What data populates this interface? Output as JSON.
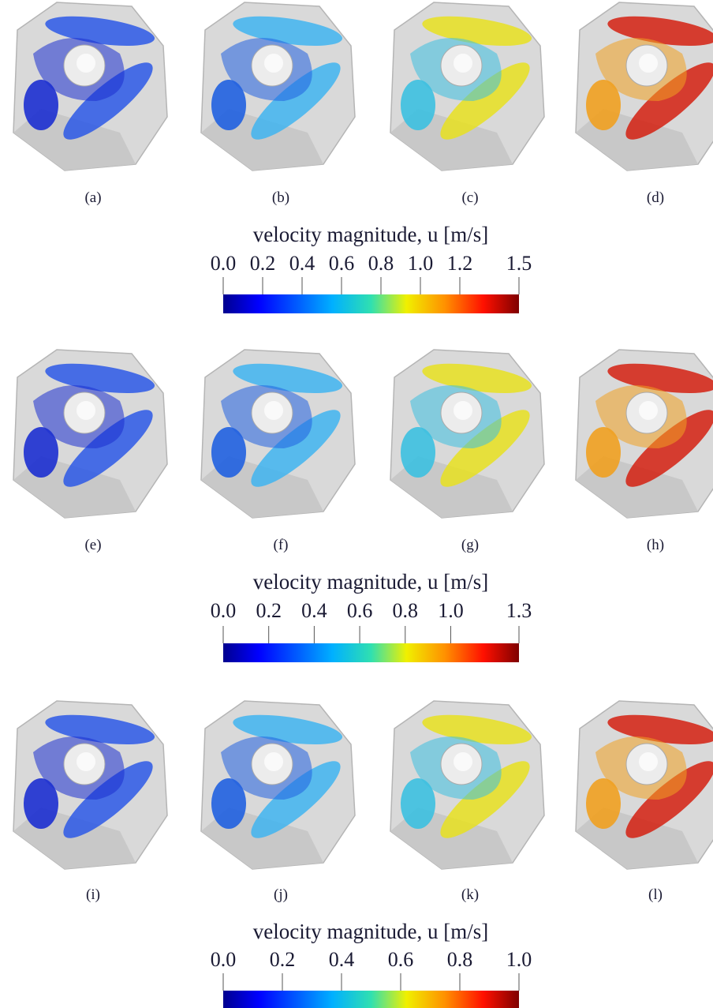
{
  "figure": {
    "rows": [
      {
        "panels": [
          "(a)",
          "(b)",
          "(c)",
          "(d)"
        ],
        "colorbar": {
          "title": "velocity magnitude, u [m/s]",
          "range": [
            0,
            1.5
          ],
          "ticks": [
            {
              "value": 0,
              "label": "0.0"
            },
            0.2,
            0.4,
            0.6,
            0.8,
            {
              "value": 1,
              "label": "1.0"
            },
            1.2,
            1.5
          ]
        }
      },
      {
        "panels": [
          "(e)",
          "(f)",
          "(g)",
          "(h)"
        ],
        "colorbar": {
          "title": "velocity magnitude, u [m/s]",
          "range": [
            0,
            1.3
          ],
          "ticks": [
            {
              "value": 0,
              "label": "0.0"
            },
            0.2,
            0.4,
            0.6,
            0.8,
            {
              "value": 1,
              "label": "1.0"
            },
            1.3
          ]
        }
      },
      {
        "panels": [
          "(i)",
          "(j)",
          "(k)",
          "(l)"
        ],
        "colorbar": {
          "title": "velocity magnitude, u [m/s]",
          "range": [
            0,
            1
          ],
          "ticks": [
            {
              "value": 0,
              "label": "0.0"
            },
            0.2,
            0.4,
            0.6,
            0.8,
            {
              "value": 1,
              "label": "1.0"
            }
          ]
        }
      }
    ]
  }
}
